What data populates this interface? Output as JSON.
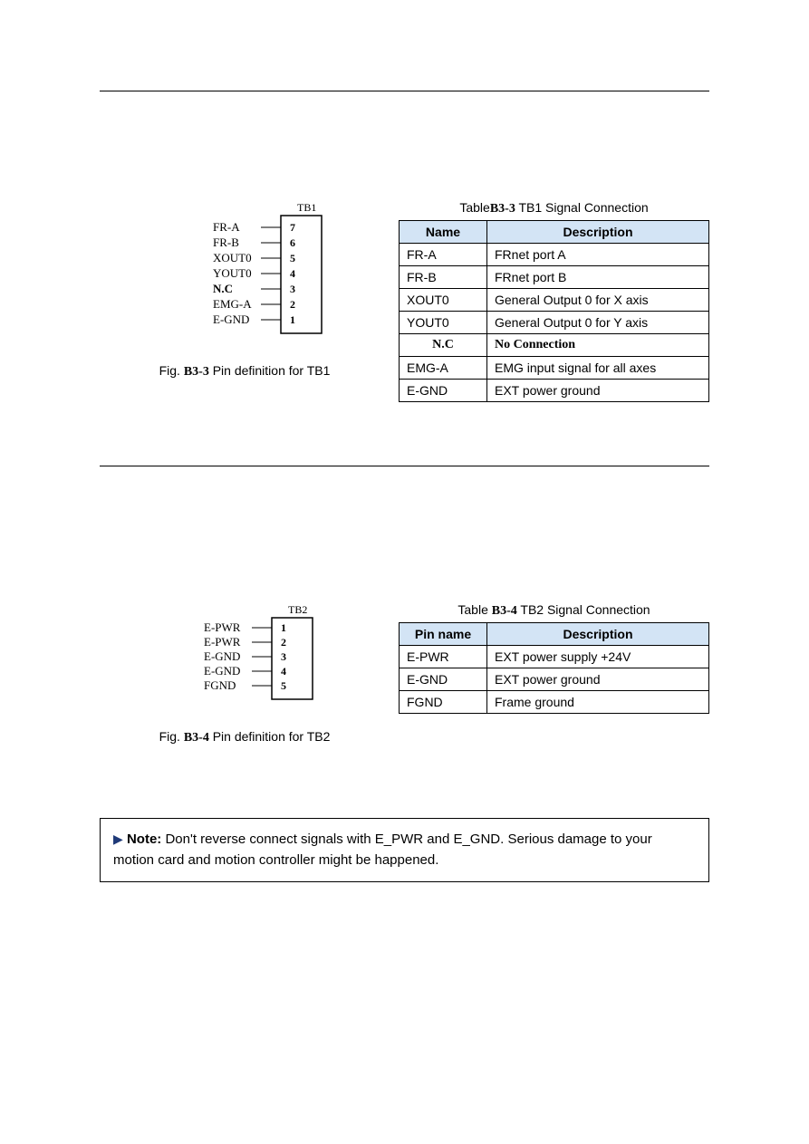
{
  "section1": {
    "diagram": {
      "header": "TB1",
      "pins": [
        {
          "label": "FR-A",
          "num": "7"
        },
        {
          "label": "FR-B",
          "num": "6"
        },
        {
          "label": "XOUT0",
          "num": "5"
        },
        {
          "label": "YOUT0",
          "num": "4"
        },
        {
          "label": "N.C",
          "num": "3",
          "bold": true
        },
        {
          "label": "EMG-A",
          "num": "2"
        },
        {
          "label": "E-GND",
          "num": "1"
        }
      ],
      "caption_prefix": "Fig. ",
      "caption_num": "B3-3",
      "caption_suffix": "  Pin definition for TB1",
      "label_color": "#1a1a1a",
      "line_color": "#000",
      "box_color": "#000",
      "num_color": "#000"
    },
    "table": {
      "title_prefix": "Table",
      "title_num": "B3-3",
      "title_suffix": " TB1 Signal Connection",
      "headers": [
        "Name",
        "Description"
      ],
      "rows": [
        {
          "name": "FR-A",
          "desc": "FRnet port A"
        },
        {
          "name": "FR-B",
          "desc": "FRnet port B"
        },
        {
          "name": "XOUT0",
          "desc": "General Output 0 for X axis"
        },
        {
          "name": "YOUT0",
          "desc": "General Output 0 for Y axis"
        },
        {
          "name": "N.C",
          "desc": "No Connection",
          "nc": true
        },
        {
          "name": "EMG-A",
          "desc": "EMG input signal for all axes"
        },
        {
          "name": "E-GND",
          "desc": "EXT power ground"
        }
      ],
      "header_bg": "#d3e4f5"
    }
  },
  "section2": {
    "diagram": {
      "header": "TB2",
      "pins": [
        {
          "label": "E-PWR",
          "num": "1"
        },
        {
          "label": "E-PWR",
          "num": "2"
        },
        {
          "label": "E-GND",
          "num": "3"
        },
        {
          "label": "E-GND",
          "num": "4"
        },
        {
          "label": "FGND",
          "num": "5"
        }
      ],
      "caption_prefix": "Fig. ",
      "caption_num": "B3-4",
      "caption_suffix": " Pin definition for TB2"
    },
    "table": {
      "title_prefix": "Table ",
      "title_num": "B3-4",
      "title_suffix": " TB2 Signal Connection",
      "headers": [
        "Pin name",
        "Description"
      ],
      "rows": [
        {
          "name": "E-PWR",
          "desc": "EXT power supply +24V"
        },
        {
          "name": "E-GND",
          "desc": "EXT power ground"
        },
        {
          "name": "FGND",
          "desc": "Frame ground"
        }
      ]
    }
  },
  "note": {
    "prefix": "Note:",
    "text1": "   Don't reverse connect signals with E_PWR and E_GND.   Serious damage to your",
    "text2": "motion card and motion controller might be happened."
  }
}
